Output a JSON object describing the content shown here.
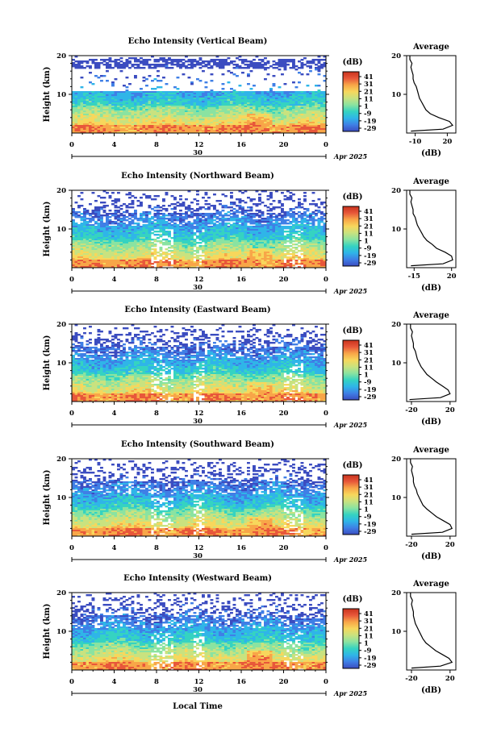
{
  "colors": {
    "scale": [
      "#3b4cc0",
      "#3f7fe6",
      "#2fb5e8",
      "#35d3c1",
      "#8ae3a1",
      "#c9e27f",
      "#f7d75c",
      "#f8a648",
      "#e8573a",
      "#c8321d"
    ],
    "axis": "#000000",
    "background": "#ffffff"
  },
  "colorbar": {
    "unit": "(dB)",
    "ticks": [
      "41",
      "31",
      "21",
      "11",
      "1",
      "-9",
      "-19",
      "-29"
    ]
  },
  "xaxis": {
    "ticks": [
      "0",
      "4",
      "8",
      "12",
      "16",
      "20",
      "0"
    ],
    "day": "30",
    "month_year": "Apr 2025",
    "label": "Local Time"
  },
  "yaxis": {
    "label": "Height (km)",
    "ticks": [
      "20",
      "10"
    ]
  },
  "average": {
    "title": "Average",
    "xlabel": "(dB)",
    "yticks": [
      "20",
      "10"
    ]
  },
  "chart_data": [
    {
      "type": "heatmap",
      "title": "Echo Intensity (Vertical Beam)",
      "xlabel": "",
      "ylabel": "Height (km)",
      "xlim": [
        0,
        24
      ],
      "ylim": [
        0,
        20
      ],
      "zlim": [
        -29,
        41
      ],
      "grid": false,
      "average_profile": {
        "xticks": [
          "-10",
          "20"
        ],
        "xlim": [
          -18,
          28
        ],
        "height": [
          0.5,
          1,
          2,
          3,
          4,
          5,
          6,
          7,
          8,
          9,
          10,
          11,
          12,
          13,
          14,
          15,
          16,
          17,
          18,
          19,
          20
        ],
        "value": [
          -14,
          16,
          25,
          22,
          12,
          4,
          0,
          -2,
          -4,
          -6,
          -7,
          -8,
          -9,
          -11,
          -12,
          -12,
          -13,
          -14,
          -13,
          -15,
          -15
        ]
      }
    },
    {
      "type": "heatmap",
      "title": "Echo Intensity (Northward Beam)",
      "xlabel": "",
      "ylabel": "Height (km)",
      "xlim": [
        0,
        24
      ],
      "ylim": [
        0,
        20
      ],
      "zlim": [
        -29,
        41
      ],
      "grid": false,
      "average_profile": {
        "xticks": [
          "-15",
          "20"
        ],
        "xlim": [
          -22,
          24
        ],
        "height": [
          0.5,
          1,
          2,
          3,
          4,
          5,
          6,
          7,
          8,
          9,
          10,
          11,
          12,
          13,
          14,
          15,
          16,
          17,
          18,
          19,
          20
        ],
        "value": [
          -18,
          12,
          21,
          20,
          14,
          6,
          2,
          -3,
          -6,
          -8,
          -10,
          -12,
          -13,
          -14,
          -16,
          -16,
          -17,
          -18,
          -17,
          -19,
          -19
        ]
      }
    },
    {
      "type": "heatmap",
      "title": "Echo Intensity (Eastward Beam)",
      "xlabel": "",
      "ylabel": "Height (km)",
      "xlim": [
        0,
        24
      ],
      "ylim": [
        0,
        20
      ],
      "zlim": [
        -29,
        41
      ],
      "grid": false,
      "average_profile": {
        "xticks": [
          "-20",
          "20"
        ],
        "xlim": [
          -25,
          26
        ],
        "height": [
          0.5,
          1,
          2,
          3,
          4,
          5,
          6,
          7,
          8,
          9,
          10,
          11,
          12,
          13,
          14,
          15,
          16,
          17,
          18,
          19,
          20
        ],
        "value": [
          -22,
          10,
          20,
          18,
          12,
          6,
          1,
          -4,
          -7,
          -10,
          -12,
          -14,
          -15,
          -16,
          -18,
          -18,
          -19,
          -20,
          -19,
          -21,
          -21
        ]
      }
    },
    {
      "type": "heatmap",
      "title": "Echo Intensity (Southward Beam)",
      "xlabel": "",
      "ylabel": "Height (km)",
      "xlim": [
        0,
        24
      ],
      "ylim": [
        0,
        20
      ],
      "zlim": [
        -29,
        41
      ],
      "grid": false,
      "average_profile": {
        "xticks": [
          "-20",
          "20"
        ],
        "xlim": [
          -25,
          26
        ],
        "height": [
          0.5,
          1,
          2,
          3,
          4,
          5,
          6,
          7,
          8,
          9,
          10,
          11,
          12,
          13,
          14,
          15,
          16,
          17,
          18,
          19,
          20
        ],
        "value": [
          -20,
          12,
          22,
          20,
          13,
          6,
          1,
          -4,
          -8,
          -10,
          -12,
          -14,
          -15,
          -17,
          -18,
          -18,
          -19,
          -20,
          -19,
          -21,
          -21
        ]
      }
    },
    {
      "type": "heatmap",
      "title": "Echo Intensity (Westward Beam)",
      "xlabel": "",
      "ylabel": "Height (km)",
      "xlim": [
        0,
        24
      ],
      "ylim": [
        0,
        20
      ],
      "zlim": [
        -29,
        41
      ],
      "grid": false,
      "average_profile": {
        "xticks": [
          "-20",
          "20"
        ],
        "xlim": [
          -25,
          26
        ],
        "height": [
          0.5,
          1,
          2,
          3,
          4,
          5,
          6,
          7,
          8,
          9,
          10,
          11,
          12,
          13,
          14,
          15,
          16,
          17,
          18,
          19,
          20
        ],
        "value": [
          -20,
          10,
          22,
          19,
          12,
          5,
          0,
          -5,
          -8,
          -10,
          -12,
          -14,
          -16,
          -17,
          -18,
          -18,
          -19,
          -20,
          -19,
          -21,
          -21
        ]
      }
    }
  ]
}
